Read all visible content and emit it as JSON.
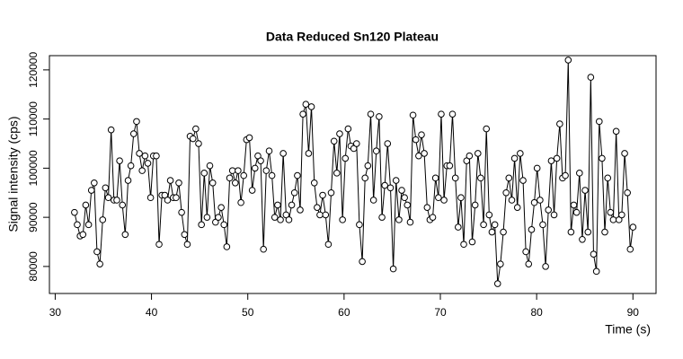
{
  "chart_data": {
    "type": "line",
    "title": "Data Reduced Sn120 Plateau",
    "xlabel": "Time (s)",
    "ylabel": "Signal intensity (cps)",
    "color": "#000000",
    "x": [
      32,
      32.29,
      32.59,
      32.88,
      33.17,
      33.47,
      33.76,
      34.05,
      34.34,
      34.64,
      34.93,
      35.22,
      35.52,
      35.81,
      36.1,
      36.4,
      36.69,
      36.98,
      37.27,
      37.57,
      37.86,
      38.15,
      38.45,
      38.74,
      39.03,
      39.33,
      39.62,
      39.91,
      40.2,
      40.5,
      40.79,
      41.08,
      41.38,
      41.67,
      41.96,
      42.26,
      42.55,
      42.84,
      43.13,
      43.43,
      43.72,
      44.01,
      44.31,
      44.6,
      44.89,
      45.19,
      45.48,
      45.77,
      46.06,
      46.36,
      46.65,
      46.94,
      47.24,
      47.53,
      47.82,
      48.12,
      48.41,
      48.7,
      48.99,
      49.29,
      49.58,
      49.87,
      50.17,
      50.46,
      50.75,
      51.05,
      51.34,
      51.63,
      51.92,
      52.22,
      52.51,
      52.8,
      53.1,
      53.39,
      53.68,
      53.98,
      54.27,
      54.56,
      54.85,
      55.15,
      55.44,
      55.73,
      56.03,
      56.32,
      56.61,
      56.91,
      57.2,
      57.49,
      57.78,
      58.08,
      58.37,
      58.66,
      58.96,
      59.25,
      59.54,
      59.84,
      60.13,
      60.42,
      60.71,
      61.01,
      61.3,
      61.59,
      61.89,
      62.18,
      62.47,
      62.77,
      63.06,
      63.35,
      63.64,
      63.94,
      64.23,
      64.52,
      64.82,
      65.11,
      65.4,
      65.7,
      65.99,
      66.28,
      66.57,
      66.87,
      67.16,
      67.45,
      67.75,
      68.04,
      68.33,
      68.63,
      68.92,
      69.21,
      69.5,
      69.8,
      70.09,
      70.38,
      70.68,
      70.97,
      71.26,
      71.56,
      71.85,
      72.14,
      72.43,
      72.73,
      73.02,
      73.31,
      73.61,
      73.9,
      74.19,
      74.49,
      74.78,
      75.07,
      75.36,
      75.66,
      75.95,
      76.24,
      76.54,
      76.83,
      77.12,
      77.42,
      77.71,
      78,
      78.29,
      78.59,
      78.88,
      79.17,
      79.47,
      79.76,
      80.05,
      80.35,
      80.64,
      80.93,
      81.22,
      81.52,
      81.81,
      82.1,
      82.4,
      82.69,
      82.98,
      83.28,
      83.57,
      83.86,
      84.15,
      84.45,
      84.74,
      85.03,
      85.33,
      85.62,
      85.91,
      86.21,
      86.5,
      86.79,
      87.08,
      87.38,
      87.67,
      87.96,
      88.26,
      88.55,
      88.84,
      89.14,
      89.43,
      89.72,
      90.01
    ],
    "values": [
      91000,
      88500,
      86200,
      86500,
      92500,
      88500,
      95500,
      97000,
      83000,
      80500,
      89500,
      96000,
      94000,
      107800,
      93500,
      93500,
      101500,
      92500,
      86500,
      97500,
      100500,
      107000,
      109500,
      103000,
      99500,
      102500,
      101000,
      94000,
      102500,
      102500,
      84500,
      94500,
      94500,
      93500,
      97500,
      94000,
      94000,
      97000,
      91000,
      86500,
      84500,
      106500,
      106000,
      108000,
      105000,
      88500,
      99000,
      90000,
      100500,
      97000,
      89000,
      90000,
      92000,
      88500,
      84000,
      98000,
      99500,
      97000,
      99500,
      93000,
      98500,
      105800,
      106200,
      95500,
      100000,
      102500,
      101500,
      83500,
      99500,
      103500,
      98500,
      90000,
      92500,
      89500,
      103000,
      90500,
      89500,
      92500,
      95000,
      98500,
      91500,
      111000,
      113000,
      103000,
      112500,
      97000,
      92000,
      90500,
      94500,
      90500,
      84500,
      95000,
      105500,
      99000,
      107000,
      89500,
      102000,
      108000,
      104500,
      104000,
      105000,
      88500,
      81000,
      98000,
      100500,
      111000,
      93500,
      103500,
      110500,
      90000,
      96500,
      105000,
      96000,
      79500,
      97500,
      89500,
      95500,
      94000,
      92500,
      89000,
      110800,
      105800,
      102500,
      106800,
      103000,
      92000,
      89500,
      90000,
      98000,
      94000,
      111000,
      93500,
      100500,
      100500,
      111000,
      98000,
      88000,
      94000,
      84500,
      101500,
      102500,
      85000,
      92500,
      103000,
      98000,
      88500,
      108000,
      90500,
      87000,
      88500,
      76500,
      80500,
      87000,
      95000,
      98000,
      93500,
      102000,
      92000,
      103000,
      97500,
      83000,
      80500,
      87500,
      93000,
      100000,
      93500,
      88500,
      80000,
      91500,
      101500,
      90500,
      102000,
      109000,
      98000,
      98500,
      122000,
      87000,
      92500,
      91000,
      99000,
      85500,
      95500,
      87000,
      118500,
      82500,
      79000,
      109500,
      102000,
      87000,
      98000,
      91000,
      89500,
      107500,
      89500,
      90500,
      103000,
      95000,
      83500,
      88000
    ],
    "xlim": [
      29.4,
      92.4
    ],
    "xticks": [
      30,
      40,
      50,
      60,
      70,
      80,
      90
    ],
    "ylim": [
      74500,
      122900
    ],
    "yticks": [
      80000,
      90000,
      100000,
      110000,
      120000
    ]
  }
}
